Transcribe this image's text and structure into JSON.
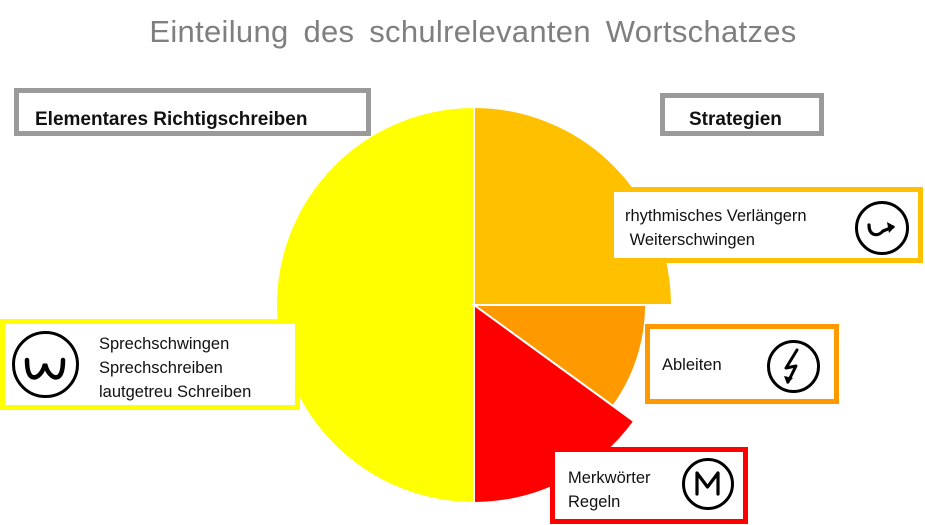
{
  "title": "Einteilung des schulrelevanten Wortschatzes",
  "headers": {
    "left": "Elementares Richtigschreiben",
    "right": "Strategien"
  },
  "chart_data": {
    "type": "pie",
    "title": "Einteilung des schulrelevanten Wortschatzes",
    "slices": [
      {
        "label": "Sprechschwingen / Sprechschreiben / lautgetreu Schreiben",
        "value": 50,
        "color": "#ffff00"
      },
      {
        "label": "rhythmisches Verlängern / Weiterschwingen",
        "value": 25,
        "color": "#ffc000"
      },
      {
        "label": "Ableiten",
        "value": 10,
        "color": "#ff9900"
      },
      {
        "label": "Merkwörter / Regeln",
        "value": 15,
        "color": "#ff0000"
      }
    ]
  },
  "boxes": {
    "speech": {
      "lines": [
        "Sprechschwingen",
        "Sprechschreiben",
        "lautgetreu Schreiben"
      ],
      "icon": "w-swing-icon",
      "border_color": "#ffff00"
    },
    "rhythm": {
      "lines": [
        "rhythmisches Verlängern",
        " Weiterschwingen"
      ],
      "icon": "curved-arrow-icon",
      "border_color": "#ffc000"
    },
    "derive": {
      "lines": [
        "Ableiten"
      ],
      "icon": "lightning-icon",
      "border_color": "#ff9900"
    },
    "merk": {
      "lines": [
        "Merkwörter",
        "Regeln"
      ],
      "icon": "m-letter-icon",
      "border_color": "#ff0000"
    }
  }
}
